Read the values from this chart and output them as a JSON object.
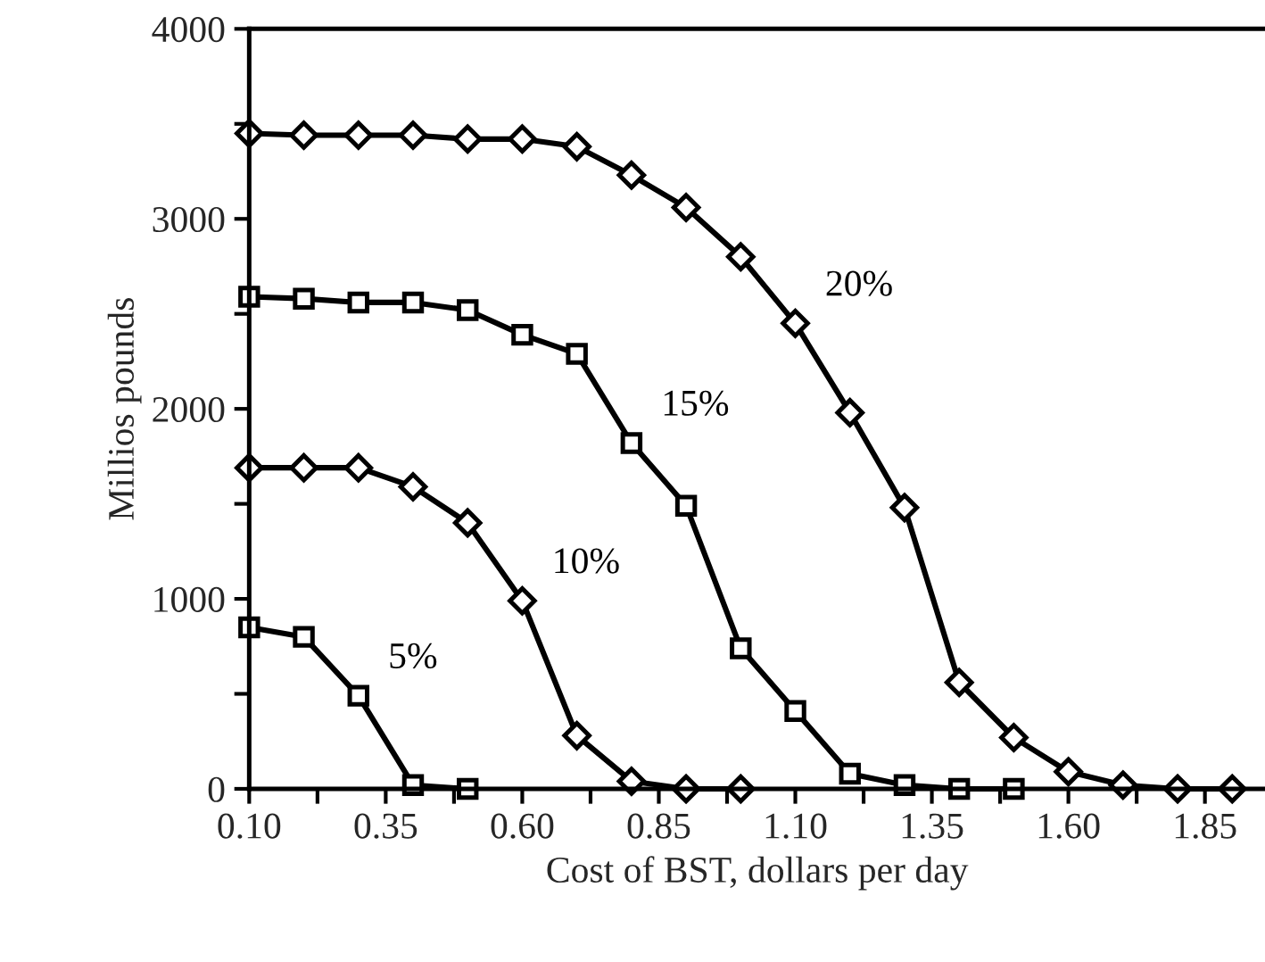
{
  "chart_data": {
    "type": "line",
    "xlabel": "Cost of BST, dollars per day",
    "ylabel": "Millios pounds",
    "xlim": [
      0.1,
      1.96
    ],
    "ylim": [
      0,
      4000
    ],
    "xticks": [
      {
        "value": 0.1,
        "label": "0.10"
      },
      {
        "value": 0.225,
        "label": null
      },
      {
        "value": 0.35,
        "label": "0.35"
      },
      {
        "value": 0.475,
        "label": null
      },
      {
        "value": 0.6,
        "label": "0.60"
      },
      {
        "value": 0.725,
        "label": null
      },
      {
        "value": 0.85,
        "label": "0.85"
      },
      {
        "value": 0.975,
        "label": null
      },
      {
        "value": 1.1,
        "label": "1.10"
      },
      {
        "value": 1.225,
        "label": null
      },
      {
        "value": 1.35,
        "label": "1.35"
      },
      {
        "value": 1.475,
        "label": null
      },
      {
        "value": 1.6,
        "label": "1.60"
      },
      {
        "value": 1.725,
        "label": null
      },
      {
        "value": 1.85,
        "label": "1.85"
      }
    ],
    "yticks": [
      0,
      {
        "value": 500,
        "label": null
      },
      1000,
      {
        "value": 1500,
        "label": null
      },
      2000,
      {
        "value": 2500,
        "label": null
      },
      3000,
      {
        "value": 3500,
        "label": null
      },
      4000
    ],
    "series": [
      {
        "name": "20%",
        "color": "#000000",
        "marker": "diamond",
        "x": [
          0.1,
          0.2,
          0.3,
          0.4,
          0.5,
          0.6,
          0.7,
          0.8,
          0.9,
          1.0,
          1.1,
          1.2,
          1.3,
          1.4,
          1.5,
          1.6,
          1.7,
          1.8,
          1.9
        ],
        "values": [
          3450,
          3440,
          3440,
          3440,
          3420,
          3420,
          3380,
          3230,
          3060,
          2800,
          2450,
          1980,
          1480,
          560,
          270,
          90,
          20,
          0,
          0
        ]
      },
      {
        "name": "15%",
        "color": "#000000",
        "marker": "square",
        "x": [
          0.1,
          0.2,
          0.3,
          0.4,
          0.5,
          0.6,
          0.7,
          0.8,
          0.9,
          1.0,
          1.1,
          1.2,
          1.3,
          1.4,
          1.5
        ],
        "values": [
          2590,
          2580,
          2560,
          2560,
          2520,
          2390,
          2290,
          1820,
          1490,
          740,
          410,
          80,
          20,
          0,
          0
        ]
      },
      {
        "name": "10%",
        "color": "#000000",
        "marker": "diamond",
        "x": [
          0.1,
          0.2,
          0.3,
          0.4,
          0.5,
          0.6,
          0.7,
          0.8,
          0.9,
          1.0
        ],
        "values": [
          1690,
          1690,
          1690,
          1590,
          1400,
          990,
          280,
          40,
          0,
          0
        ]
      },
      {
        "name": "5%",
        "color": "#000000",
        "marker": "square",
        "x": [
          0.1,
          0.2,
          0.3,
          0.4,
          0.5
        ],
        "values": [
          850,
          800,
          490,
          20,
          0
        ]
      }
    ],
    "grid": false,
    "legend": false
  }
}
